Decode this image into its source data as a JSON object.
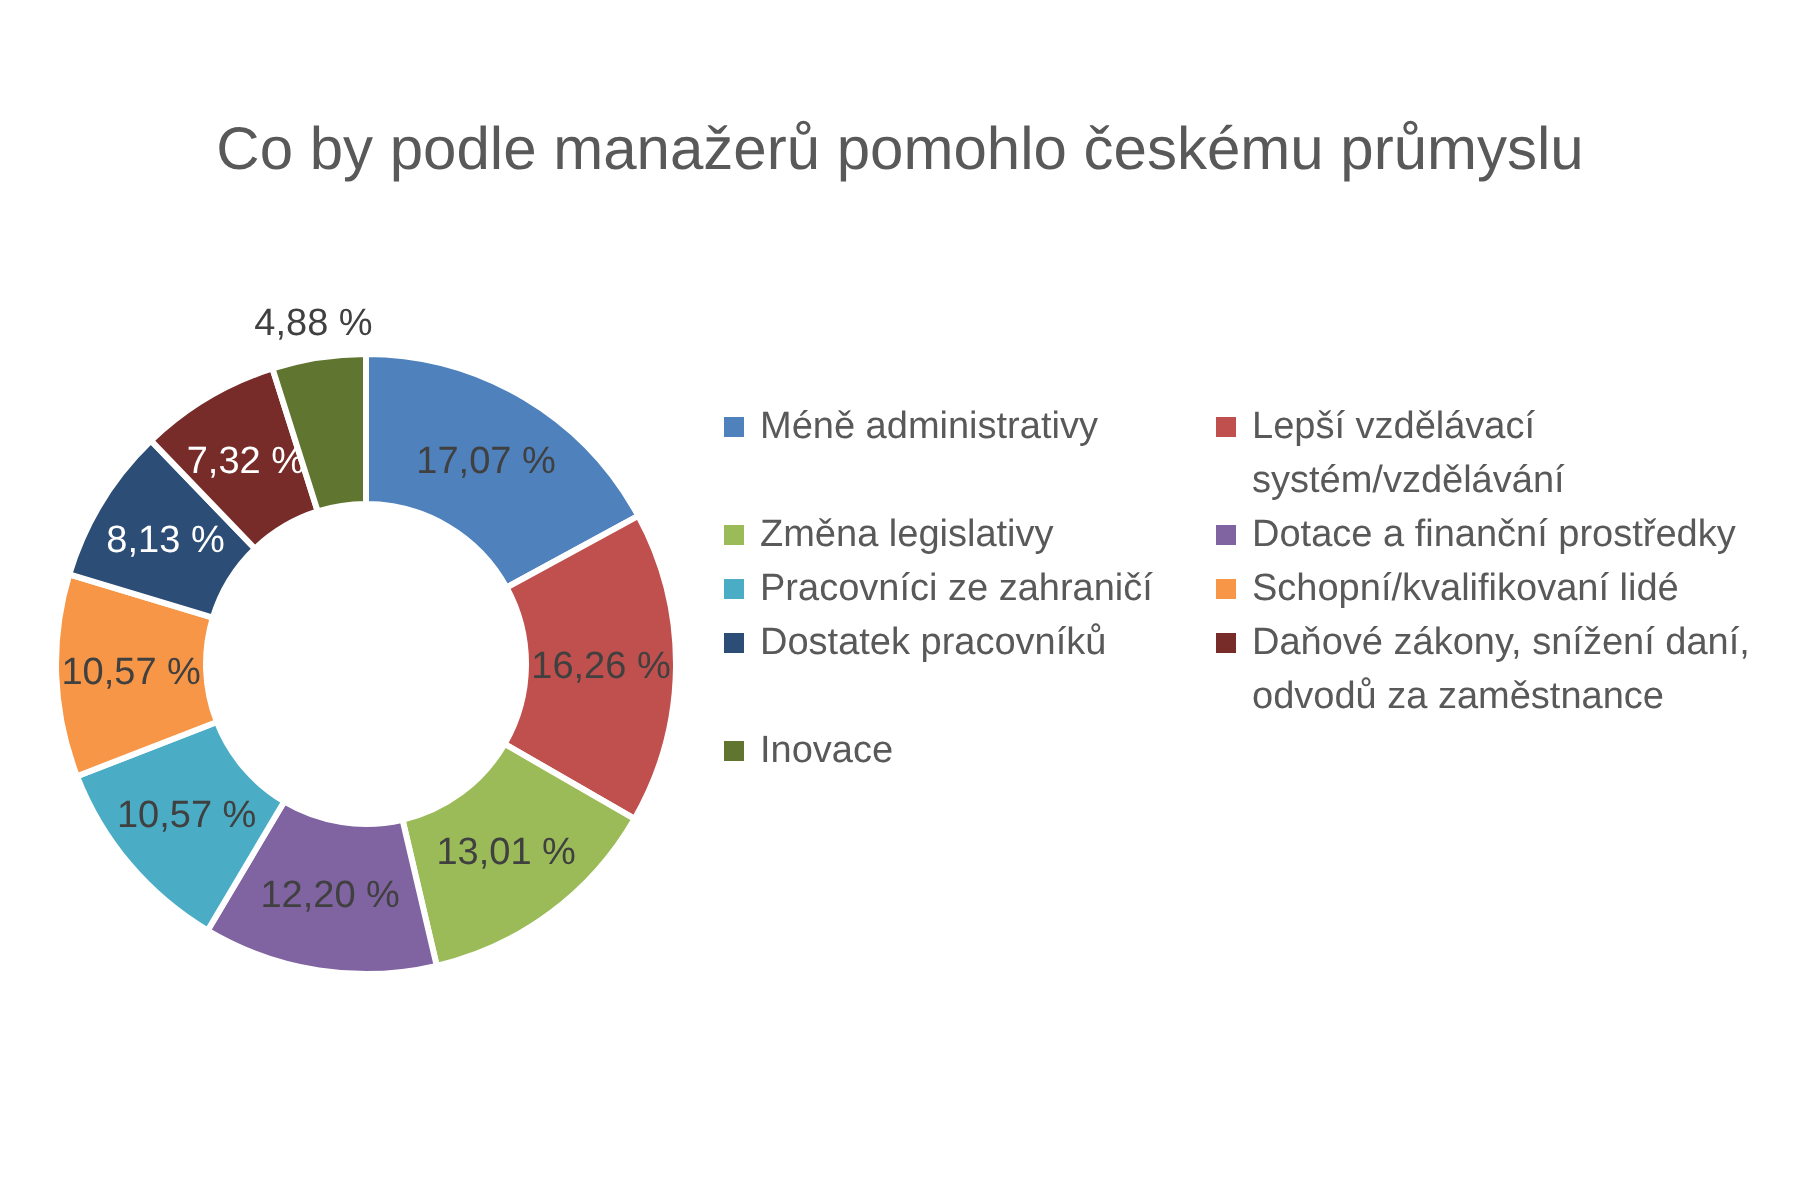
{
  "chart_data": {
    "type": "donut",
    "title": "Co by podle manažerů pomohlo českému průmyslu",
    "categories": [
      "Méně administrativy",
      "Lepší vzdělávací systém/vzdělávání",
      "Změna legislativy",
      "Dotace a finanční prostředky",
      "Pracovníci ze zahraničí",
      "Schopní/kvalifikovaní lidé",
      "Dostatek pracovníků",
      "Daňové zákony, snížení daní, odvodů za zaměstnance",
      "Inovace"
    ],
    "values": [
      17.07,
      16.26,
      13.01,
      12.2,
      10.57,
      10.57,
      8.13,
      7.32,
      4.88
    ],
    "colors": [
      "#4f81bd",
      "#c0504d",
      "#9bbb59",
      "#8064a2",
      "#4bacc6",
      "#f79646",
      "#2c4d75",
      "#772c2a",
      "#5f7530"
    ],
    "value_labels": [
      "17,07 %",
      "16,26 %",
      "13,01 %",
      "12,20 %",
      "10,57 %",
      "10,57 %",
      "8,13 %",
      "7,32 %",
      "4,88 %"
    ],
    "legend": "right"
  }
}
